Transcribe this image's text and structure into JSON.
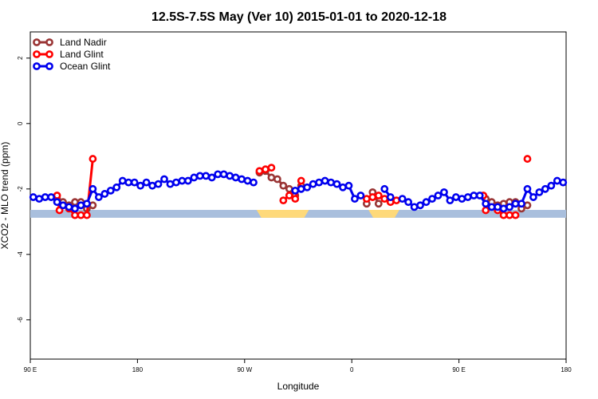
{
  "chart_data": {
    "type": "line",
    "title": "12.5S-7.5S May (Ver 10)   2015-01-01 to 2020-12-18",
    "xlabel": "Longitude",
    "ylabel": "XCO2 - MLO trend (ppm)",
    "x_ticks": [
      {
        "x": 0,
        "label": "90 E"
      },
      {
        "x": 90,
        "label": "180"
      },
      {
        "x": 180,
        "label": "90 W"
      },
      {
        "x": 270,
        "label": "0"
      },
      {
        "x": 360,
        "label": "90 E"
      },
      {
        "x": 450,
        "label": "180"
      }
    ],
    "y_ticks": [
      {
        "y": 2,
        "label": "2"
      },
      {
        "y": 0,
        "label": "0"
      },
      {
        "y": -2,
        "label": "-2"
      },
      {
        "y": -4,
        "label": "-4"
      },
      {
        "y": -6,
        "label": "-6"
      }
    ],
    "xlim": [
      0,
      450
    ],
    "ylim": [
      -7.2,
      2.8
    ],
    "legend_position": "top-left",
    "land_band": {
      "y_range": [
        -2.88,
        -2.64
      ],
      "ocean_color": "#a9bfdd",
      "land_color": "#fed97a",
      "land_segments": [
        [
          190,
          234
        ],
        [
          284,
          310
        ]
      ]
    },
    "series": [
      {
        "name": "Land Nadir",
        "color": "#9a3535",
        "points": [
          [
            22.5,
            -2.3
          ],
          [
            27.5,
            -2.4
          ],
          [
            32.5,
            -2.5
          ],
          [
            37.5,
            -2.4
          ],
          [
            42.5,
            -2.4
          ],
          [
            47.5,
            -2.6
          ],
          [
            52.5,
            -2.5
          ],
          [
            192.5,
            -1.5
          ],
          [
            197.5,
            -1.45
          ],
          [
            202.5,
            -1.65
          ],
          [
            207.5,
            -1.7
          ],
          [
            212.5,
            -1.9
          ],
          [
            217.5,
            -2.0
          ],
          [
            222.5,
            -2.2
          ],
          [
            227.5,
            -1.9
          ],
          [
            282.5,
            -2.45
          ],
          [
            287.5,
            -2.1
          ],
          [
            292.5,
            -2.45
          ],
          [
            302.5,
            -2.35
          ],
          [
            382.5,
            -2.3
          ],
          [
            387.5,
            -2.4
          ],
          [
            392.5,
            -2.5
          ],
          [
            397.5,
            -2.45
          ],
          [
            402.5,
            -2.4
          ],
          [
            407.5,
            -2.4
          ],
          [
            412.5,
            -2.6
          ],
          [
            417.5,
            -2.5
          ]
        ]
      },
      {
        "name": "Land Glint",
        "color": "#ff0000",
        "points": [
          [
            22.5,
            -2.2
          ],
          [
            24.5,
            -2.65
          ],
          [
            32.5,
            -2.6
          ],
          [
            37.5,
            -2.8
          ],
          [
            42.5,
            -2.8
          ],
          [
            47.5,
            -2.8
          ],
          [
            52.5,
            -1.08
          ],
          [
            192.5,
            -1.45
          ],
          [
            197.5,
            -1.4
          ],
          [
            202.5,
            -1.35
          ],
          [
            212.5,
            -2.35
          ],
          [
            217.5,
            -2.2
          ],
          [
            222.5,
            -2.3
          ],
          [
            227.5,
            -1.75
          ],
          [
            282.5,
            -2.3
          ],
          [
            287.5,
            -2.25
          ],
          [
            292.5,
            -2.2
          ],
          [
            297.5,
            -2.3
          ],
          [
            302.5,
            -2.4
          ],
          [
            307.5,
            -2.35
          ],
          [
            380.5,
            -2.2
          ],
          [
            382.5,
            -2.65
          ],
          [
            392.5,
            -2.65
          ],
          [
            397.5,
            -2.8
          ],
          [
            402.5,
            -2.8
          ],
          [
            407.5,
            -2.8
          ],
          [
            417.5,
            -1.08
          ]
        ]
      },
      {
        "name": "Ocean Glint",
        "color": "#0000ee",
        "points": [
          [
            2.5,
            -2.25
          ],
          [
            7.5,
            -2.3
          ],
          [
            12.5,
            -2.25
          ],
          [
            17.5,
            -2.25
          ],
          [
            22.5,
            -2.4
          ],
          [
            27.5,
            -2.5
          ],
          [
            32.5,
            -2.55
          ],
          [
            37.5,
            -2.6
          ],
          [
            42.5,
            -2.5
          ],
          [
            47.5,
            -2.45
          ],
          [
            52.5,
            -2.0
          ],
          [
            57.5,
            -2.25
          ],
          [
            62.5,
            -2.15
          ],
          [
            67.5,
            -2.05
          ],
          [
            72.5,
            -1.95
          ],
          [
            77.5,
            -1.75
          ],
          [
            82.5,
            -1.8
          ],
          [
            87.5,
            -1.8
          ],
          [
            92.5,
            -1.9
          ],
          [
            97.5,
            -1.8
          ],
          [
            102.5,
            -1.9
          ],
          [
            107.5,
            -1.85
          ],
          [
            112.5,
            -1.7
          ],
          [
            117.5,
            -1.85
          ],
          [
            122.5,
            -1.8
          ],
          [
            127.5,
            -1.75
          ],
          [
            132.5,
            -1.75
          ],
          [
            137.5,
            -1.65
          ],
          [
            142.5,
            -1.6
          ],
          [
            147.5,
            -1.6
          ],
          [
            152.5,
            -1.65
          ],
          [
            157.5,
            -1.55
          ],
          [
            162.5,
            -1.55
          ],
          [
            167.5,
            -1.6
          ],
          [
            172.5,
            -1.65
          ],
          [
            177.5,
            -1.7
          ],
          [
            182.5,
            -1.75
          ],
          [
            187.5,
            -1.8
          ],
          [
            222.5,
            -2.05
          ],
          [
            227.5,
            -2.0
          ],
          [
            232.5,
            -1.95
          ],
          [
            237.5,
            -1.85
          ],
          [
            242.5,
            -1.8
          ],
          [
            247.5,
            -1.75
          ],
          [
            252.5,
            -1.8
          ],
          [
            257.5,
            -1.85
          ],
          [
            262.5,
            -1.95
          ],
          [
            267.5,
            -1.9
          ],
          [
            272.5,
            -2.3
          ],
          [
            277.5,
            -2.2
          ],
          [
            297.5,
            -2.0
          ],
          [
            302.5,
            -2.25
          ],
          [
            312.5,
            -2.3
          ],
          [
            317.5,
            -2.4
          ],
          [
            322.5,
            -2.55
          ],
          [
            327.5,
            -2.5
          ],
          [
            332.5,
            -2.4
          ],
          [
            337.5,
            -2.3
          ],
          [
            342.5,
            -2.2
          ],
          [
            347.5,
            -2.1
          ],
          [
            352.5,
            -2.35
          ],
          [
            357.5,
            -2.25
          ],
          [
            362.5,
            -2.3
          ],
          [
            367.5,
            -2.25
          ],
          [
            372.5,
            -2.2
          ],
          [
            377.5,
            -2.2
          ],
          [
            382.5,
            -2.45
          ],
          [
            387.5,
            -2.55
          ],
          [
            392.5,
            -2.55
          ],
          [
            397.5,
            -2.6
          ],
          [
            402.5,
            -2.55
          ],
          [
            407.5,
            -2.45
          ],
          [
            412.5,
            -2.45
          ],
          [
            417.5,
            -2.0
          ],
          [
            422.5,
            -2.25
          ],
          [
            427.5,
            -2.1
          ],
          [
            432.5,
            -2.0
          ],
          [
            437.5,
            -1.9
          ],
          [
            442.5,
            -1.75
          ],
          [
            447.5,
            -1.8
          ]
        ]
      }
    ]
  }
}
